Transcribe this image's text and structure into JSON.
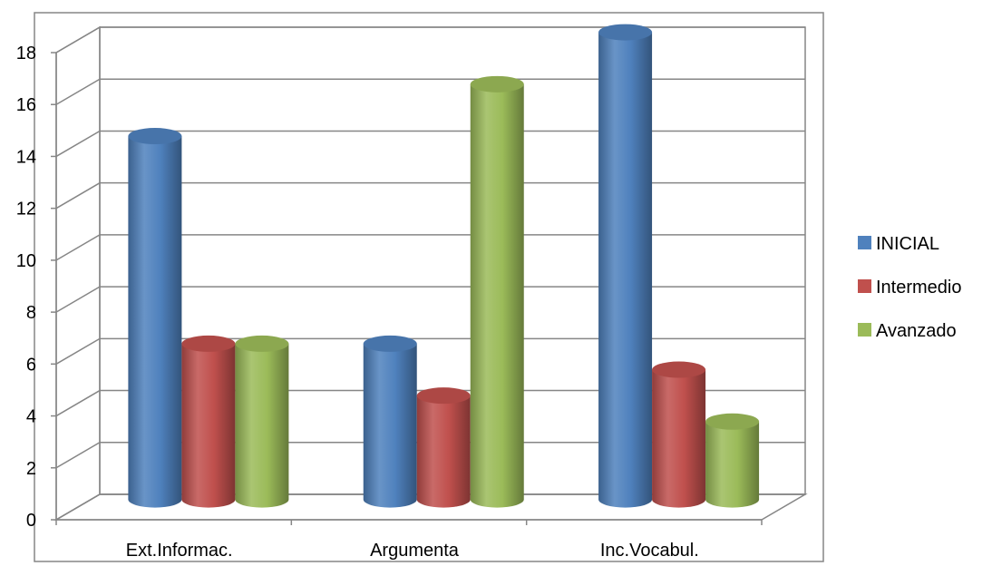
{
  "chart_data": {
    "type": "bar",
    "style": "3d-cylinder",
    "categories": [
      "Ext.Informac.",
      "Argumenta",
      "Inc.Vocabul."
    ],
    "series": [
      {
        "name": "INICIAL",
        "values": [
          14,
          6,
          18
        ],
        "color": "#4F81BD"
      },
      {
        "name": "Intermedio",
        "values": [
          6,
          4,
          5
        ],
        "color": "#C0504D"
      },
      {
        "name": "Avanzado",
        "values": [
          6,
          16,
          3
        ],
        "color": "#9BBB59"
      }
    ],
    "yticks": [
      "0",
      "2",
      "4",
      "6",
      "8",
      "10",
      "12",
      "14",
      "16",
      "18"
    ],
    "ylim": [
      0,
      18
    ],
    "grid": true,
    "legend_position": "right"
  }
}
